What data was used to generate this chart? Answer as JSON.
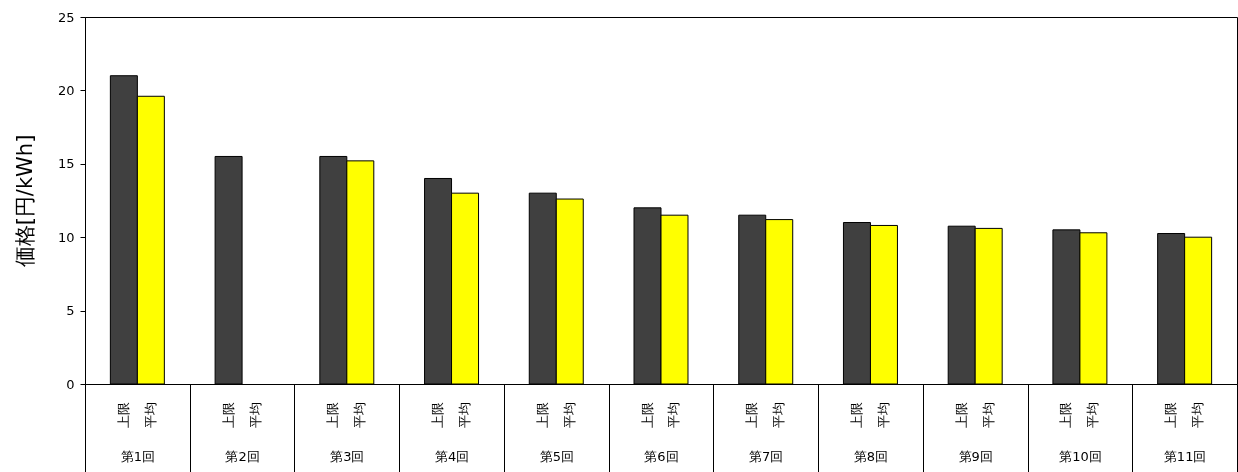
{
  "chart_data": {
    "type": "bar",
    "ylabel": "価格[円/kWh]",
    "categories": [
      "第1回",
      "第2回",
      "第3回",
      "第4回",
      "第5回",
      "第6回",
      "第7回",
      "第8回",
      "第9回",
      "第10回",
      "第11回"
    ],
    "series": [
      {
        "name": "上限",
        "color": "#404040",
        "values": [
          21.0,
          15.5,
          15.5,
          14.0,
          13.0,
          12.0,
          11.5,
          11.0,
          10.75,
          10.5,
          10.25
        ]
      },
      {
        "name": "平均",
        "color": "#ffff00",
        "values": [
          19.6,
          null,
          15.2,
          13.0,
          12.6,
          11.5,
          11.2,
          10.8,
          10.6,
          10.3,
          10.0
        ]
      }
    ],
    "ylim": [
      0,
      25
    ],
    "yticks": [
      0,
      5,
      10,
      15,
      20,
      25
    ],
    "grid": false
  }
}
